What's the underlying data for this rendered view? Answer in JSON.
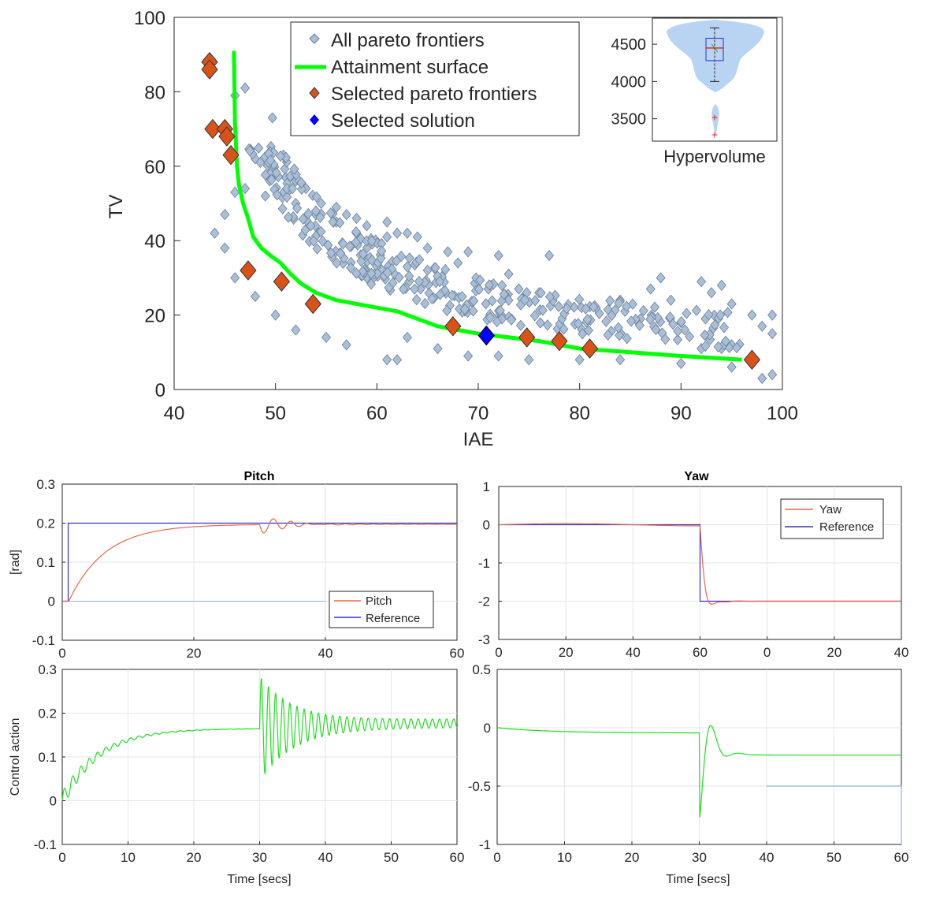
{
  "chart_data": [
    {
      "id": "pareto",
      "type": "scatter",
      "xlabel": "IAE",
      "ylabel": "TV",
      "xlim": [
        40,
        100
      ],
      "ylim": [
        0,
        100
      ],
      "xticks": [
        "40",
        "50",
        "60",
        "70",
        "80",
        "90",
        "100"
      ],
      "yticks": [
        "0",
        "20",
        "40",
        "60",
        "80",
        "100"
      ],
      "legend": {
        "placement": "top-center",
        "entries": [
          "All pareto frontiers",
          "Attainment surface",
          "Selected pareto frontiers",
          "Selected solution"
        ]
      },
      "colors": {
        "all": "#a9bfd8",
        "attainment": "#00ff00",
        "selected": "#d95319",
        "solution": "#0000ff"
      },
      "attainment_surface": [
        [
          45.9,
          91
        ],
        [
          46.0,
          72
        ],
        [
          46.2,
          60
        ],
        [
          46.4,
          55
        ],
        [
          46.8,
          50
        ],
        [
          47.3,
          46
        ],
        [
          47.8,
          41
        ],
        [
          48.6,
          38
        ],
        [
          49.5,
          36
        ],
        [
          50.5,
          34
        ],
        [
          51.5,
          31
        ],
        [
          52.5,
          28.5
        ],
        [
          54,
          26
        ],
        [
          56,
          24
        ],
        [
          58,
          23
        ],
        [
          60,
          22
        ],
        [
          62,
          21
        ],
        [
          64,
          19
        ],
        [
          66,
          17
        ],
        [
          68,
          16
        ],
        [
          70,
          15
        ],
        [
          73,
          14
        ],
        [
          76,
          13
        ],
        [
          80,
          11
        ],
        [
          85,
          10
        ],
        [
          90,
          9
        ],
        [
          96,
          8
        ]
      ],
      "selected_pareto_frontiers": [
        [
          43.5,
          88
        ],
        [
          43.5,
          86
        ],
        [
          43.8,
          70
        ],
        [
          45.0,
          70
        ],
        [
          45.2,
          68
        ],
        [
          45.6,
          63
        ],
        [
          47.3,
          32
        ],
        [
          50.6,
          29
        ],
        [
          53.7,
          23
        ],
        [
          67.5,
          17
        ],
        [
          74.8,
          14
        ],
        [
          78.0,
          13
        ],
        [
          81.0,
          11
        ],
        [
          97.0,
          8
        ]
      ],
      "selected_solution": [
        [
          70.8,
          14.5
        ]
      ],
      "all_pareto_frontiers_sample": [
        [
          47,
          81
        ],
        [
          46,
          79
        ],
        [
          49.7,
          73
        ],
        [
          48,
          62
        ],
        [
          48.5,
          61
        ],
        [
          50,
          58
        ],
        [
          51,
          57
        ],
        [
          52,
          56
        ],
        [
          53,
          54
        ],
        [
          47,
          54
        ],
        [
          49,
          52
        ],
        [
          52,
          50
        ],
        [
          54.5,
          50
        ],
        [
          56,
          49
        ],
        [
          57,
          47
        ],
        [
          58,
          46
        ],
        [
          56,
          45
        ],
        [
          59,
          44
        ],
        [
          61,
          45
        ],
        [
          62,
          42
        ],
        [
          63,
          42
        ],
        [
          64,
          41
        ],
        [
          61,
          41
        ],
        [
          65,
          38
        ],
        [
          67,
          37
        ],
        [
          69,
          37
        ],
        [
          72,
          36
        ],
        [
          77,
          36
        ],
        [
          68,
          34
        ],
        [
          73,
          31
        ],
        [
          63,
          33
        ],
        [
          59,
          32
        ],
        [
          71,
          27
        ],
        [
          74,
          27
        ],
        [
          76,
          26
        ],
        [
          88,
          30
        ],
        [
          87,
          27
        ],
        [
          89,
          24
        ],
        [
          92,
          29
        ],
        [
          94,
          28
        ],
        [
          93,
          26
        ],
        [
          95,
          23
        ],
        [
          84,
          24
        ],
        [
          86,
          19
        ],
        [
          90,
          18
        ],
        [
          97,
          20
        ],
        [
          99,
          20
        ],
        [
          98,
          17
        ],
        [
          99,
          15
        ],
        [
          92,
          11
        ],
        [
          94,
          11
        ],
        [
          95,
          12
        ],
        [
          99,
          4
        ],
        [
          98,
          3
        ],
        [
          95,
          6
        ],
        [
          90,
          7
        ],
        [
          84,
          8
        ],
        [
          80,
          8
        ],
        [
          75,
          8
        ],
        [
          72,
          9
        ],
        [
          69,
          9
        ],
        [
          66,
          11
        ],
        [
          63,
          14
        ],
        [
          61,
          8
        ],
        [
          62,
          8
        ],
        [
          57,
          12
        ],
        [
          55,
          14
        ],
        [
          52,
          16
        ],
        [
          50,
          20
        ],
        [
          48,
          25
        ],
        [
          46,
          30
        ],
        [
          45,
          38
        ],
        [
          44,
          42
        ],
        [
          45,
          47
        ],
        [
          46,
          53
        ]
      ],
      "inset": {
        "type": "violin-box",
        "xlabel": "Hypervolume",
        "yticks": [
          "3500",
          "4000",
          "4500"
        ],
        "ylim": [
          3200,
          4850
        ],
        "median": 4450,
        "q1": 4280,
        "q3": 4580,
        "whisker_low": 4000,
        "whisker_high": 4720,
        "outliers": [
          3520,
          3290
        ]
      }
    },
    {
      "id": "pitch",
      "type": "line",
      "title": "Pitch",
      "ylabel": "[rad]",
      "xlim": [
        0,
        60
      ],
      "ylim": [
        -0.1,
        0.3
      ],
      "xticks": [
        "0",
        "20",
        "40",
        "60"
      ],
      "yticks": [
        "-0.1",
        "0",
        "0.1",
        "0.2",
        "0.3"
      ],
      "legend": {
        "placement": "bottom-right",
        "entries": [
          "Pitch",
          "Reference"
        ]
      },
      "series": [
        {
          "name": "Pitch",
          "color": "#e8694a"
        },
        {
          "name": "Reference",
          "color": "#3333cc"
        }
      ]
    },
    {
      "id": "yaw",
      "type": "line",
      "title": "Yaw",
      "xlim": [
        0,
        40
      ],
      "ylim": [
        -3,
        1
      ],
      "xticks": [
        "0",
        "20",
        "40",
        "60",
        "0",
        "20",
        "40"
      ],
      "yticks": [
        "-3",
        "-2",
        "-1",
        "0",
        "1"
      ],
      "legend": {
        "placement": "top-right",
        "entries": [
          "Yaw",
          "Reference"
        ]
      },
      "series": [
        {
          "name": "Yaw",
          "color": "#e8694a"
        },
        {
          "name": "Reference",
          "color": "#3333cc"
        }
      ]
    },
    {
      "id": "pitch_control",
      "type": "line",
      "xlabel": "Time [secs]",
      "ylabel": "Control action",
      "xlim": [
        0,
        60
      ],
      "ylim": [
        -0.1,
        0.3
      ],
      "xticks": [
        "0",
        "10",
        "20",
        "30",
        "40",
        "50",
        "60"
      ],
      "yticks": [
        "-0.1",
        "0",
        "0.1",
        "0.2",
        "0.3"
      ],
      "series": [
        {
          "color": "#22dd22"
        }
      ]
    },
    {
      "id": "yaw_control",
      "type": "line",
      "xlabel": "Time [secs]",
      "xlim": [
        0,
        60
      ],
      "ylim": [
        -1,
        0.5
      ],
      "xticks": [
        "0",
        "10",
        "20",
        "30",
        "40",
        "50",
        "60"
      ],
      "yticks": [
        "-1",
        "-0.5",
        "0",
        "0.5"
      ],
      "series": [
        {
          "color": "#22dd22"
        }
      ]
    }
  ]
}
